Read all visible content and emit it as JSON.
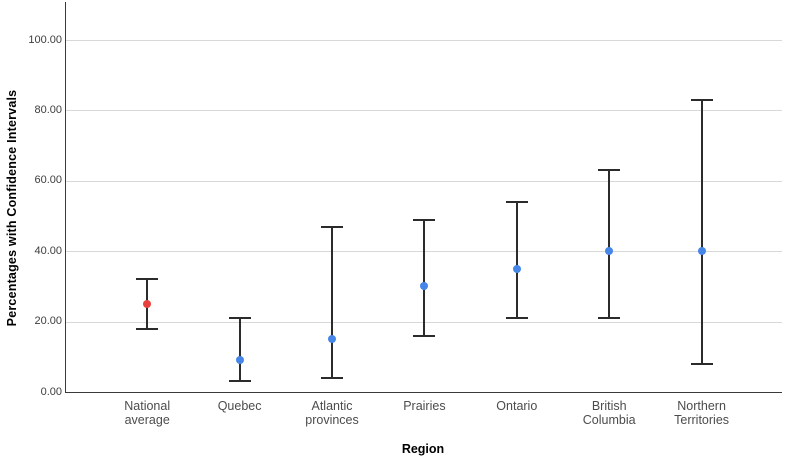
{
  "chart_data": {
    "type": "errorbar",
    "title": "",
    "xlabel": "Region",
    "ylabel": "Percentages with Confidence Intervals",
    "ylim": [
      0,
      110
    ],
    "y_ticks": [
      {
        "value": 0,
        "label": "0.00"
      },
      {
        "value": 20,
        "label": "20.00"
      },
      {
        "value": 40,
        "label": "40.00"
      },
      {
        "value": 60,
        "label": "60.00"
      },
      {
        "value": 80,
        "label": "80.00"
      },
      {
        "value": 100,
        "label": "100.00"
      }
    ],
    "grid": "horizontal-light-gray",
    "legend": "none",
    "categories": [
      "National average",
      "Quebec",
      "Atlantic provinces",
      "Prairies",
      "Ontario",
      "British Columbia",
      "Northern Territories"
    ],
    "points": [
      {
        "category": "National average",
        "label_lines": [
          "National",
          "average"
        ],
        "mean": 25,
        "ci_low": 18,
        "ci_high": 32,
        "marker": "highlight"
      },
      {
        "category": "Quebec",
        "label_lines": [
          "Quebec"
        ],
        "mean": 9,
        "ci_low": 3,
        "ci_high": 21,
        "marker": "default"
      },
      {
        "category": "Atlantic provinces",
        "label_lines": [
          "Atlantic",
          "provinces"
        ],
        "mean": 15,
        "ci_low": 4,
        "ci_high": 47,
        "marker": "default"
      },
      {
        "category": "Prairies",
        "label_lines": [
          "Prairies"
        ],
        "mean": 30,
        "ci_low": 16,
        "ci_high": 49,
        "marker": "default"
      },
      {
        "category": "Ontario",
        "label_lines": [
          "Ontario"
        ],
        "mean": 35,
        "ci_low": 21,
        "ci_high": 54,
        "marker": "default"
      },
      {
        "category": "British Columbia",
        "label_lines": [
          "British",
          "Columbia"
        ],
        "mean": 40,
        "ci_low": 21,
        "ci_high": 63,
        "marker": "default"
      },
      {
        "category": "Northern Territories",
        "label_lines": [
          "Northern",
          "Territories"
        ],
        "mean": 40,
        "ci_low": 8,
        "ci_high": 83,
        "marker": "default"
      }
    ],
    "colors": {
      "default_marker": "#4686e8",
      "highlight_marker": "#e8413d",
      "error_bar": "#2b2b2b",
      "gridline": "#d8d8d8",
      "axis_line": "#3a3a3a",
      "tick_label": "#3d3d3d",
      "category_label": "#4c4c4c",
      "background": "#ffffff"
    }
  }
}
